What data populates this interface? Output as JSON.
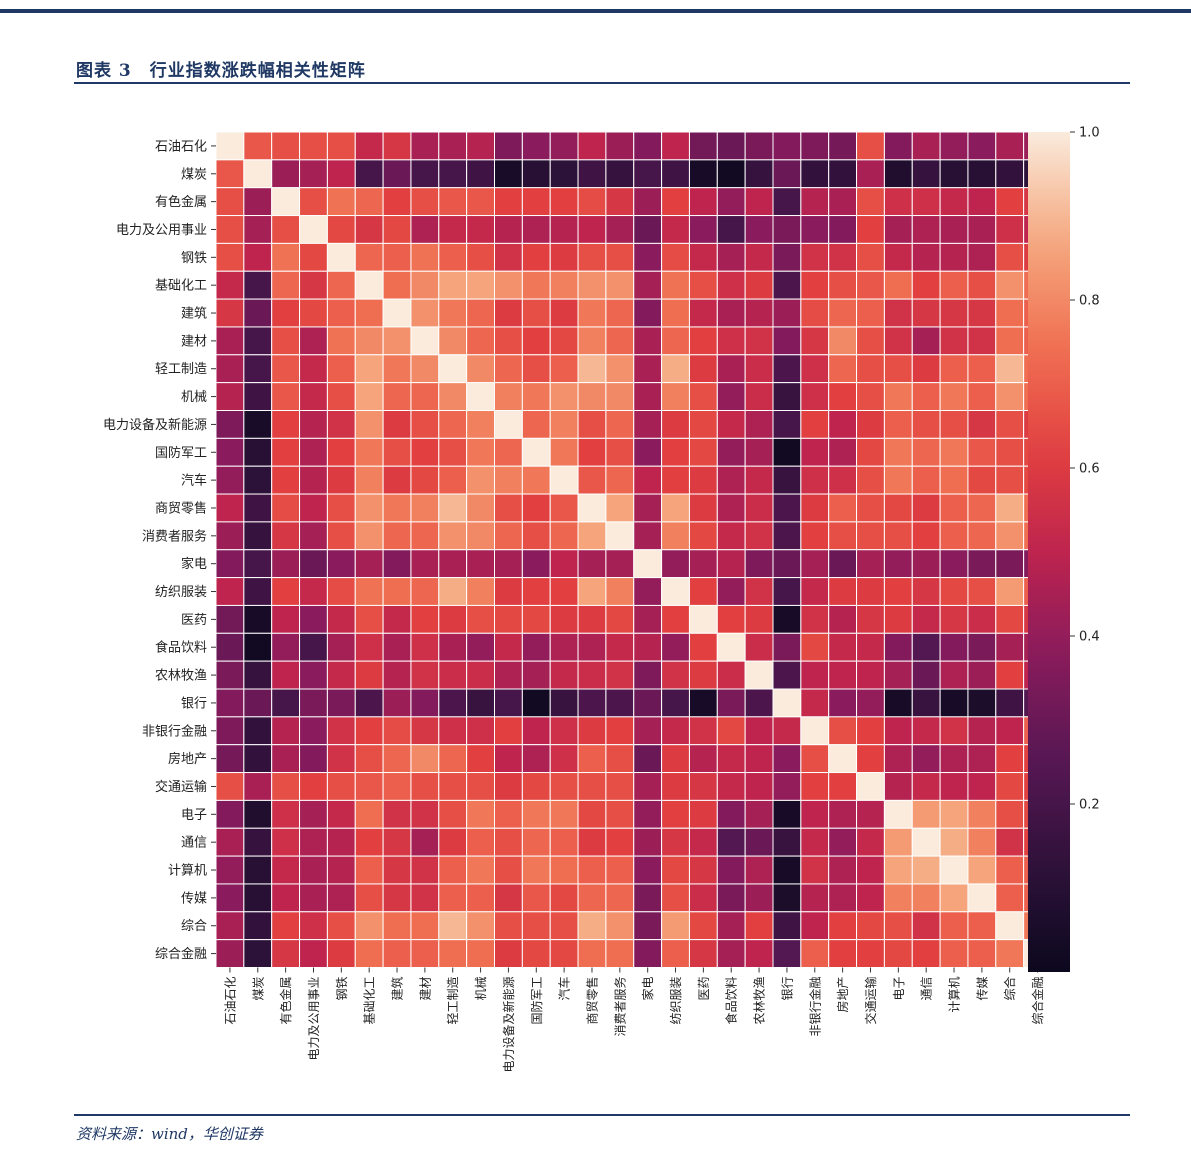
{
  "figure": {
    "title": "图表 3　行业指数涨跌幅相关性矩阵",
    "source": "资料来源：wind，华创证券"
  },
  "chart_data": {
    "type": "heatmap",
    "title": "",
    "labels": [
      "石油石化",
      "煤炭",
      "有色金属",
      "电力及公用事业",
      "钢铁",
      "基础化工",
      "建筑",
      "建材",
      "轻工制造",
      "机械",
      "电力设备及新能源",
      "国防军工",
      "汽车",
      "商贸零售",
      "消费者服务",
      "家电",
      "纺织服装",
      "医药",
      "食品饮料",
      "农林牧渔",
      "银行",
      "非银行金融",
      "房地产",
      "交通运输",
      "电子",
      "通信",
      "计算机",
      "传媒",
      "综合",
      "综合金融"
    ],
    "color_range": [
      0.0,
      1.0
    ],
    "colorbar_ticks": [
      0.2,
      0.4,
      0.6,
      0.8,
      1.0
    ],
    "colorbar_tick_labels": [
      "0.2",
      "0.4",
      "0.6",
      "0.8",
      "1.0"
    ],
    "colormap": "rocket",
    "matrix": [
      [
        1.0,
        0.68,
        0.66,
        0.66,
        0.66,
        0.52,
        0.58,
        0.45,
        0.45,
        0.48,
        0.35,
        0.38,
        0.4,
        0.5,
        0.42,
        0.36,
        0.5,
        0.32,
        0.3,
        0.34,
        0.36,
        0.35,
        0.33,
        0.66,
        0.36,
        0.45,
        0.4,
        0.38,
        0.45,
        0.42
      ],
      [
        0.68,
        1.0,
        0.42,
        0.44,
        0.5,
        0.2,
        0.3,
        0.2,
        0.2,
        0.18,
        0.05,
        0.1,
        0.12,
        0.18,
        0.15,
        0.2,
        0.18,
        0.04,
        0.02,
        0.15,
        0.3,
        0.14,
        0.14,
        0.45,
        0.08,
        0.15,
        0.1,
        0.1,
        0.14,
        0.12
      ],
      [
        0.66,
        0.42,
        1.0,
        0.66,
        0.75,
        0.72,
        0.62,
        0.66,
        0.68,
        0.68,
        0.62,
        0.62,
        0.62,
        0.65,
        0.58,
        0.42,
        0.62,
        0.5,
        0.4,
        0.5,
        0.2,
        0.48,
        0.45,
        0.66,
        0.55,
        0.55,
        0.52,
        0.5,
        0.62,
        0.58
      ],
      [
        0.66,
        0.44,
        0.66,
        1.0,
        0.64,
        0.58,
        0.64,
        0.46,
        0.52,
        0.52,
        0.48,
        0.46,
        0.48,
        0.5,
        0.44,
        0.3,
        0.52,
        0.38,
        0.2,
        0.38,
        0.34,
        0.38,
        0.36,
        0.62,
        0.44,
        0.46,
        0.45,
        0.45,
        0.55,
        0.5
      ],
      [
        0.66,
        0.5,
        0.75,
        0.64,
        1.0,
        0.72,
        0.7,
        0.75,
        0.7,
        0.66,
        0.56,
        0.62,
        0.6,
        0.66,
        0.66,
        0.38,
        0.65,
        0.52,
        0.44,
        0.52,
        0.34,
        0.56,
        0.56,
        0.66,
        0.52,
        0.48,
        0.48,
        0.46,
        0.66,
        0.6
      ],
      [
        0.52,
        0.2,
        0.72,
        0.58,
        0.72,
        1.0,
        0.74,
        0.8,
        0.86,
        0.86,
        0.82,
        0.76,
        0.78,
        0.82,
        0.82,
        0.44,
        0.75,
        0.66,
        0.55,
        0.6,
        0.22,
        0.62,
        0.66,
        0.68,
        0.74,
        0.62,
        0.7,
        0.66,
        0.82,
        0.74
      ],
      [
        0.58,
        0.3,
        0.62,
        0.64,
        0.7,
        0.74,
        1.0,
        0.82,
        0.76,
        0.72,
        0.6,
        0.66,
        0.6,
        0.76,
        0.72,
        0.36,
        0.74,
        0.52,
        0.45,
        0.48,
        0.42,
        0.65,
        0.72,
        0.7,
        0.56,
        0.58,
        0.58,
        0.58,
        0.74,
        0.7
      ],
      [
        0.45,
        0.2,
        0.66,
        0.46,
        0.75,
        0.8,
        0.82,
        1.0,
        0.8,
        0.72,
        0.66,
        0.62,
        0.64,
        0.78,
        0.72,
        0.45,
        0.72,
        0.62,
        0.55,
        0.56,
        0.36,
        0.58,
        0.8,
        0.66,
        0.56,
        0.44,
        0.56,
        0.56,
        0.74,
        0.7
      ],
      [
        0.45,
        0.2,
        0.68,
        0.52,
        0.7,
        0.86,
        0.76,
        0.8,
        1.0,
        0.8,
        0.72,
        0.66,
        0.7,
        0.9,
        0.82,
        0.45,
        0.88,
        0.6,
        0.45,
        0.54,
        0.22,
        0.55,
        0.72,
        0.66,
        0.66,
        0.6,
        0.7,
        0.7,
        0.9,
        0.74
      ],
      [
        0.48,
        0.18,
        0.68,
        0.52,
        0.66,
        0.86,
        0.72,
        0.72,
        0.8,
        1.0,
        0.78,
        0.76,
        0.82,
        0.8,
        0.8,
        0.45,
        0.78,
        0.66,
        0.4,
        0.54,
        0.16,
        0.55,
        0.62,
        0.66,
        0.76,
        0.7,
        0.76,
        0.7,
        0.82,
        0.74
      ],
      [
        0.35,
        0.05,
        0.62,
        0.48,
        0.56,
        0.82,
        0.6,
        0.66,
        0.72,
        0.78,
        1.0,
        0.72,
        0.78,
        0.66,
        0.72,
        0.44,
        0.6,
        0.64,
        0.52,
        0.46,
        0.2,
        0.62,
        0.5,
        0.6,
        0.7,
        0.66,
        0.66,
        0.58,
        0.66,
        0.6
      ],
      [
        0.38,
        0.1,
        0.62,
        0.46,
        0.62,
        0.76,
        0.66,
        0.62,
        0.66,
        0.76,
        0.72,
        1.0,
        0.76,
        0.62,
        0.66,
        0.38,
        0.62,
        0.64,
        0.4,
        0.44,
        0.02,
        0.5,
        0.46,
        0.64,
        0.76,
        0.72,
        0.76,
        0.68,
        0.66,
        0.64
      ],
      [
        0.4,
        0.12,
        0.62,
        0.48,
        0.6,
        0.78,
        0.6,
        0.64,
        0.7,
        0.82,
        0.78,
        0.76,
        1.0,
        0.68,
        0.72,
        0.5,
        0.62,
        0.6,
        0.46,
        0.52,
        0.16,
        0.55,
        0.55,
        0.66,
        0.76,
        0.7,
        0.74,
        0.64,
        0.66,
        0.64
      ],
      [
        0.5,
        0.18,
        0.65,
        0.5,
        0.66,
        0.82,
        0.76,
        0.78,
        0.9,
        0.8,
        0.66,
        0.62,
        0.68,
        1.0,
        0.86,
        0.44,
        0.86,
        0.6,
        0.46,
        0.54,
        0.22,
        0.6,
        0.7,
        0.66,
        0.64,
        0.6,
        0.7,
        0.72,
        0.88,
        0.74
      ],
      [
        0.42,
        0.15,
        0.58,
        0.44,
        0.66,
        0.82,
        0.72,
        0.72,
        0.82,
        0.8,
        0.72,
        0.66,
        0.72,
        0.86,
        1.0,
        0.44,
        0.78,
        0.64,
        0.52,
        0.56,
        0.22,
        0.62,
        0.66,
        0.66,
        0.66,
        0.62,
        0.7,
        0.72,
        0.82,
        0.74
      ],
      [
        0.36,
        0.2,
        0.42,
        0.3,
        0.38,
        0.44,
        0.36,
        0.45,
        0.45,
        0.45,
        0.44,
        0.38,
        0.5,
        0.44,
        0.44,
        1.0,
        0.4,
        0.44,
        0.48,
        0.35,
        0.3,
        0.44,
        0.3,
        0.44,
        0.4,
        0.42,
        0.38,
        0.34,
        0.34,
        0.36
      ],
      [
        0.5,
        0.18,
        0.62,
        0.52,
        0.65,
        0.75,
        0.74,
        0.72,
        0.88,
        0.78,
        0.6,
        0.62,
        0.62,
        0.86,
        0.78,
        0.4,
        1.0,
        0.62,
        0.4,
        0.56,
        0.2,
        0.52,
        0.6,
        0.6,
        0.62,
        0.58,
        0.64,
        0.66,
        0.84,
        0.7
      ],
      [
        0.32,
        0.04,
        0.5,
        0.38,
        0.52,
        0.66,
        0.52,
        0.62,
        0.6,
        0.66,
        0.64,
        0.64,
        0.6,
        0.6,
        0.64,
        0.44,
        0.62,
        1.0,
        0.62,
        0.6,
        0.04,
        0.56,
        0.48,
        0.58,
        0.6,
        0.52,
        0.58,
        0.54,
        0.64,
        0.58
      ],
      [
        0.3,
        0.02,
        0.4,
        0.2,
        0.44,
        0.55,
        0.45,
        0.55,
        0.45,
        0.4,
        0.52,
        0.4,
        0.46,
        0.46,
        0.52,
        0.48,
        0.4,
        0.62,
        1.0,
        0.54,
        0.34,
        0.64,
        0.52,
        0.52,
        0.36,
        0.24,
        0.36,
        0.34,
        0.44,
        0.44
      ],
      [
        0.34,
        0.15,
        0.5,
        0.38,
        0.52,
        0.6,
        0.48,
        0.56,
        0.54,
        0.54,
        0.46,
        0.44,
        0.52,
        0.54,
        0.56,
        0.35,
        0.56,
        0.6,
        0.54,
        1.0,
        0.22,
        0.5,
        0.5,
        0.5,
        0.44,
        0.3,
        0.46,
        0.42,
        0.62,
        0.5
      ],
      [
        0.36,
        0.3,
        0.2,
        0.34,
        0.34,
        0.22,
        0.42,
        0.36,
        0.22,
        0.16,
        0.2,
        0.02,
        0.16,
        0.22,
        0.22,
        0.3,
        0.2,
        0.04,
        0.34,
        0.22,
        1.0,
        0.52,
        0.38,
        0.4,
        0.04,
        0.16,
        0.04,
        0.06,
        0.18,
        0.24
      ],
      [
        0.35,
        0.14,
        0.48,
        0.38,
        0.56,
        0.62,
        0.65,
        0.58,
        0.55,
        0.55,
        0.62,
        0.5,
        0.55,
        0.6,
        0.62,
        0.44,
        0.52,
        0.56,
        0.64,
        0.5,
        0.52,
        1.0,
        0.66,
        0.62,
        0.5,
        0.52,
        0.56,
        0.48,
        0.5,
        0.7
      ],
      [
        0.33,
        0.14,
        0.45,
        0.36,
        0.56,
        0.66,
        0.72,
        0.8,
        0.72,
        0.62,
        0.5,
        0.46,
        0.55,
        0.7,
        0.66,
        0.3,
        0.6,
        0.48,
        0.52,
        0.5,
        0.38,
        0.66,
        1.0,
        0.62,
        0.46,
        0.4,
        0.46,
        0.46,
        0.62,
        0.62
      ],
      [
        0.66,
        0.45,
        0.66,
        0.62,
        0.66,
        0.68,
        0.7,
        0.66,
        0.66,
        0.66,
        0.6,
        0.64,
        0.66,
        0.66,
        0.66,
        0.44,
        0.6,
        0.58,
        0.52,
        0.5,
        0.4,
        0.62,
        0.62,
        1.0,
        0.48,
        0.52,
        0.5,
        0.5,
        0.64,
        0.62
      ],
      [
        0.36,
        0.08,
        0.55,
        0.44,
        0.52,
        0.74,
        0.56,
        0.56,
        0.66,
        0.76,
        0.7,
        0.76,
        0.76,
        0.64,
        0.66,
        0.4,
        0.62,
        0.6,
        0.36,
        0.44,
        0.04,
        0.5,
        0.46,
        0.48,
        1.0,
        0.84,
        0.86,
        0.78,
        0.66,
        0.64
      ],
      [
        0.45,
        0.15,
        0.55,
        0.46,
        0.48,
        0.62,
        0.58,
        0.44,
        0.6,
        0.7,
        0.66,
        0.72,
        0.7,
        0.6,
        0.62,
        0.42,
        0.58,
        0.52,
        0.24,
        0.3,
        0.16,
        0.52,
        0.4,
        0.52,
        0.84,
        1.0,
        0.88,
        0.78,
        0.56,
        0.62
      ],
      [
        0.4,
        0.1,
        0.52,
        0.45,
        0.48,
        0.7,
        0.58,
        0.56,
        0.7,
        0.76,
        0.66,
        0.76,
        0.74,
        0.7,
        0.7,
        0.38,
        0.64,
        0.58,
        0.36,
        0.46,
        0.04,
        0.56,
        0.46,
        0.5,
        0.86,
        0.88,
        1.0,
        0.86,
        0.7,
        0.7
      ],
      [
        0.38,
        0.1,
        0.5,
        0.45,
        0.46,
        0.66,
        0.58,
        0.56,
        0.7,
        0.7,
        0.58,
        0.68,
        0.64,
        0.72,
        0.72,
        0.34,
        0.66,
        0.54,
        0.34,
        0.42,
        0.06,
        0.48,
        0.46,
        0.5,
        0.78,
        0.78,
        0.86,
        1.0,
        0.7,
        0.7
      ],
      [
        0.45,
        0.14,
        0.62,
        0.55,
        0.66,
        0.82,
        0.74,
        0.74,
        0.9,
        0.82,
        0.66,
        0.66,
        0.66,
        0.88,
        0.82,
        0.34,
        0.84,
        0.64,
        0.44,
        0.62,
        0.18,
        0.5,
        0.62,
        0.64,
        0.66,
        0.56,
        0.7,
        0.7,
        1.0,
        0.76
      ],
      [
        0.42,
        0.12,
        0.58,
        0.5,
        0.6,
        0.74,
        0.7,
        0.7,
        0.74,
        0.74,
        0.6,
        0.64,
        0.64,
        0.74,
        0.74,
        0.36,
        0.7,
        0.58,
        0.44,
        0.5,
        0.24,
        0.7,
        0.62,
        0.62,
        0.64,
        0.62,
        0.7,
        0.7,
        0.76,
        1.0
      ]
    ]
  }
}
